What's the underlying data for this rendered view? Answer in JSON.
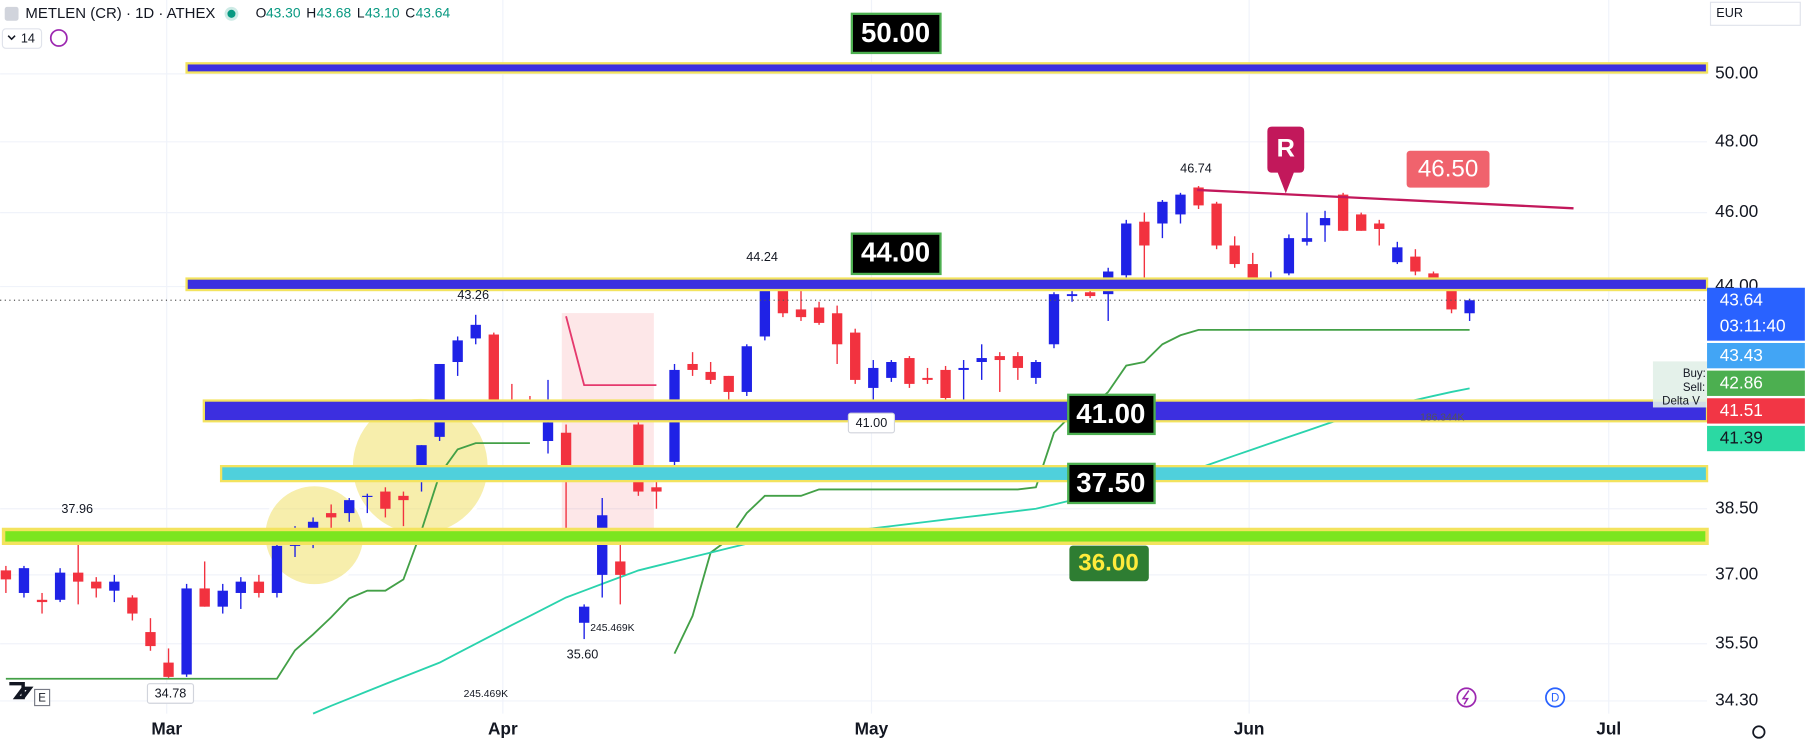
{
  "header": {
    "symbol": "METLEN (CR) · 1D · ATHEX",
    "ohlc": [
      {
        "letter": "O",
        "value": "43.30"
      },
      {
        "letter": "H",
        "value": "43.68"
      },
      {
        "letter": "L",
        "value": "43.10"
      },
      {
        "letter": "C",
        "value": "43.64"
      }
    ],
    "interval_count": "14",
    "currency": "EUR",
    "logo_badge": "E",
    "dividend_marker": "D"
  },
  "chart_data": {
    "type": "candlestick",
    "log_scale": true,
    "grid": true,
    "up_color": "#1f22e6",
    "down_color": "#f2323f",
    "x": [
      0,
      1,
      2,
      3,
      4,
      5,
      6,
      7,
      8,
      9,
      10,
      11,
      12,
      13,
      14,
      15,
      16,
      17,
      18,
      19,
      20,
      21,
      22,
      23,
      24,
      25,
      26,
      27,
      28,
      29,
      30,
      31,
      32,
      33,
      34,
      35,
      36,
      37,
      38,
      39,
      40,
      41,
      42,
      43,
      44,
      45,
      46,
      47,
      48,
      49,
      50,
      51,
      52,
      53,
      54,
      55,
      56,
      57,
      58,
      59,
      60,
      61,
      62,
      63,
      64,
      65,
      66,
      67,
      68,
      69,
      70,
      71,
      72,
      73,
      74,
      75,
      76,
      77,
      78,
      79,
      80,
      81
    ],
    "open": [
      37.1,
      36.6,
      36.45,
      36.45,
      37.05,
      36.85,
      36.65,
      36.5,
      35.75,
      35.1,
      34.85,
      36.7,
      36.3,
      36.6,
      36.85,
      36.6,
      37.65,
      37.95,
      38.4,
      38.4,
      38.8,
      38.9,
      38.8,
      39.2,
      40.2,
      42.05,
      42.65,
      42.75,
      41.0,
      40.95,
      40.1,
      40.3,
      35.95,
      37.0,
      37.3,
      40.5,
      39.0,
      39.6,
      42.0,
      41.8,
      41.7,
      41.3,
      42.7,
      44.0,
      43.4,
      43.45,
      43.3,
      42.8,
      41.4,
      41.65,
      42.15,
      41.65,
      41.85,
      41.85,
      42.05,
      42.2,
      42.2,
      41.65,
      42.5,
      43.75,
      43.85,
      43.8,
      44.3,
      45.75,
      45.7,
      45.95,
      46.7,
      46.25,
      45.1,
      44.6,
      43.95,
      44.35,
      45.2,
      45.65,
      46.5,
      45.95,
      45.7,
      44.65,
      44.8,
      44.35,
      43.95,
      43.3
    ],
    "high": [
      37.2,
      37.2,
      36.6,
      37.15,
      37.96,
      36.95,
      37.0,
      36.55,
      36.05,
      35.4,
      36.8,
      37.3,
      36.8,
      36.95,
      37.0,
      37.7,
      38.1,
      38.3,
      38.6,
      38.75,
      38.85,
      39.0,
      38.9,
      40.0,
      42.0,
      42.7,
      43.26,
      42.8,
      41.5,
      41.2,
      41.6,
      40.5,
      36.35,
      38.75,
      37.9,
      40.6,
      39.3,
      42.0,
      42.3,
      42.05,
      41.7,
      42.5,
      44.24,
      44.1,
      44.0,
      43.6,
      43.5,
      42.9,
      42.1,
      42.1,
      42.2,
      41.9,
      41.95,
      42.1,
      42.5,
      42.3,
      42.3,
      42.1,
      43.85,
      43.95,
      43.95,
      44.5,
      45.8,
      46.0,
      46.35,
      46.55,
      46.74,
      46.3,
      45.35,
      44.9,
      44.4,
      45.4,
      46.0,
      46.05,
      46.55,
      46.0,
      45.8,
      45.2,
      45.0,
      44.4,
      44.15,
      43.68
    ],
    "low": [
      36.6,
      36.5,
      36.15,
      36.4,
      36.35,
      36.5,
      36.4,
      36.0,
      35.35,
      34.78,
      34.8,
      36.3,
      36.15,
      36.25,
      36.5,
      36.5,
      37.4,
      37.6,
      37.75,
      38.2,
      38.4,
      38.3,
      38.1,
      38.9,
      40.1,
      41.7,
      42.5,
      40.6,
      40.7,
      40.7,
      39.8,
      37.9,
      35.6,
      36.5,
      36.35,
      38.8,
      38.5,
      39.5,
      41.7,
      41.5,
      41.0,
      41.2,
      42.6,
      43.2,
      43.1,
      43.0,
      42.0,
      41.5,
      41.0,
      41.55,
      41.4,
      41.5,
      40.9,
      41.1,
      41.6,
      41.3,
      41.6,
      41.5,
      42.4,
      43.6,
      43.7,
      43.1,
      44.2,
      44.0,
      45.3,
      45.7,
      46.1,
      45.0,
      44.5,
      43.9,
      43.9,
      44.3,
      45.1,
      45.2,
      45.5,
      45.5,
      45.1,
      44.6,
      44.3,
      43.9,
      43.3,
      43.1
    ],
    "close": [
      36.9,
      37.15,
      36.4,
      37.05,
      36.85,
      36.7,
      36.85,
      36.15,
      35.45,
      34.8,
      36.7,
      36.3,
      36.65,
      36.85,
      36.6,
      37.65,
      38.05,
      38.2,
      38.3,
      38.7,
      38.8,
      38.5,
      38.7,
      40.0,
      42.0,
      42.6,
      43.0,
      40.7,
      40.9,
      40.9,
      40.55,
      39.2,
      36.3,
      38.35,
      37.0,
      38.9,
      38.9,
      41.85,
      41.85,
      41.6,
      41.3,
      42.45,
      44.0,
      43.3,
      43.2,
      43.05,
      42.5,
      41.6,
      41.9,
      42.05,
      41.5,
      41.6,
      41.15,
      41.9,
      42.15,
      42.1,
      41.9,
      42.05,
      43.8,
      43.8,
      43.75,
      44.4,
      45.7,
      45.1,
      46.3,
      46.5,
      46.2,
      45.1,
      44.6,
      44.15,
      44.0,
      45.3,
      45.3,
      45.85,
      45.5,
      45.5,
      45.55,
      45.05,
      44.4,
      43.95,
      43.4,
      43.64
    ],
    "lines": [
      {
        "color": "#43a047",
        "values": [
          34.76,
          34.76,
          34.76,
          34.76,
          34.76,
          34.76,
          34.76,
          34.76,
          34.76,
          34.76,
          34.76,
          34.76,
          34.76,
          34.76,
          34.76,
          34.76,
          35.36,
          35.7,
          36.07,
          36.48,
          36.65,
          36.65,
          36.9,
          38.0,
          39.3,
          39.9,
          40.05,
          40.05,
          40.05,
          40.05,
          null,
          null,
          null,
          null,
          null,
          null,
          null,
          null,
          null,
          null,
          null,
          null,
          null,
          null,
          null,
          null,
          null,
          null,
          null,
          null,
          null,
          null,
          null,
          null,
          null,
          null,
          null,
          null,
          null,
          null,
          null,
          null,
          null,
          null,
          null,
          null,
          null,
          null,
          null,
          null,
          null,
          null,
          null,
          null,
          null,
          null,
          null,
          null,
          null,
          null,
          null,
          null
        ]
      },
      {
        "color": "#e5396d",
        "values": [
          null,
          null,
          null,
          null,
          null,
          null,
          null,
          null,
          null,
          null,
          null,
          null,
          null,
          null,
          null,
          null,
          null,
          null,
          null,
          null,
          null,
          null,
          null,
          null,
          null,
          null,
          null,
          null,
          null,
          null,
          null,
          43.22,
          41.47,
          41.47,
          41.47,
          41.47,
          41.47,
          null,
          null,
          null,
          null,
          null,
          null,
          null,
          null,
          null,
          null,
          null,
          null,
          null,
          null,
          null,
          null,
          null,
          null,
          null,
          null,
          null,
          null,
          null,
          null,
          null,
          null,
          null,
          null,
          null,
          null,
          null,
          null,
          null,
          null,
          null,
          null,
          null,
          null,
          null,
          null,
          null,
          null,
          null,
          null,
          null
        ]
      },
      {
        "color": "#43a047",
        "values": [
          null,
          null,
          null,
          null,
          null,
          null,
          null,
          null,
          null,
          null,
          null,
          null,
          null,
          null,
          null,
          null,
          null,
          null,
          null,
          null,
          null,
          null,
          null,
          null,
          null,
          null,
          null,
          null,
          null,
          null,
          null,
          null,
          null,
          null,
          null,
          null,
          null,
          35.29,
          36.1,
          37.5,
          37.8,
          38.4,
          38.8,
          38.8,
          38.8,
          38.95,
          38.95,
          38.95,
          38.95,
          38.95,
          38.95,
          38.95,
          38.95,
          38.95,
          38.95,
          38.95,
          38.95,
          39.0,
          40.3,
          40.75,
          40.9,
          41.3,
          41.96,
          42.05,
          42.5,
          42.73,
          42.87,
          42.87,
          42.87,
          42.87,
          42.87,
          42.87,
          42.87,
          42.87,
          42.87,
          42.87,
          42.87,
          42.87,
          42.87,
          42.87,
          42.87,
          42.87
        ]
      },
      {
        "color": "#2ad3ad",
        "values": [
          null,
          null,
          null,
          null,
          null,
          null,
          null,
          null,
          null,
          null,
          null,
          null,
          null,
          null,
          null,
          null,
          null,
          34.04,
          34.2,
          34.35,
          34.5,
          34.65,
          34.8,
          34.95,
          35.1,
          35.3,
          35.5,
          35.7,
          35.9,
          36.1,
          36.3,
          36.5,
          36.65,
          36.8,
          36.95,
          37.1,
          37.2,
          37.3,
          37.4,
          37.5,
          37.6,
          37.7,
          37.75,
          37.8,
          37.85,
          37.9,
          37.95,
          38.0,
          38.05,
          38.1,
          38.15,
          38.2,
          38.25,
          38.3,
          38.35,
          38.4,
          38.45,
          38.5,
          38.6,
          38.7,
          38.8,
          38.9,
          39.0,
          39.1,
          39.2,
          39.3,
          39.45,
          39.6,
          39.75,
          39.9,
          40.05,
          40.2,
          40.35,
          40.5,
          40.65,
          40.8,
          40.9,
          41.0,
          41.1,
          41.2,
          41.3,
          41.39
        ]
      }
    ],
    "xlim": [
      -0.32,
      94.14
    ],
    "xticks": [
      {
        "value": 8.9,
        "label": "Mar"
      },
      {
        "value": 27.5,
        "label": "Apr"
      },
      {
        "value": 47.9,
        "label": "May"
      },
      {
        "value": 68.8,
        "label": "Jun"
      },
      {
        "value": 88.7,
        "label": "Jul"
      }
    ],
    "ylim": [
      34.04,
      52.27
    ],
    "yticks": [
      {
        "value": 34.3,
        "label": "34.30"
      },
      {
        "value": 35.5,
        "label": "35.50"
      },
      {
        "value": 37,
        "label": "37.00"
      },
      {
        "value": 38.5,
        "label": "38.50"
      },
      {
        "value": 44,
        "label": "44.00"
      },
      {
        "value": 46,
        "label": "46.00"
      },
      {
        "value": 48,
        "label": "48.00"
      },
      {
        "value": 50,
        "label": "50.00"
      }
    ],
    "axis_badges": [
      {
        "text": "43.64",
        "subtext": "03:11:40",
        "color": "#2962ff",
        "text_color": "#ffffff"
      },
      {
        "text": "43.43",
        "color": "#42a5f5",
        "text_color": "#ffffff"
      },
      {
        "text": "42.86",
        "color": "#4caf50",
        "text_color": "#ffffff"
      },
      {
        "text": "41.51",
        "color": "#f23645",
        "text_color": "#ffffff"
      },
      {
        "text": "41.39",
        "color": "#2bd9a3",
        "text_color": "#131722"
      }
    ],
    "annotations": {
      "levels": [
        "50.00",
        "44.00",
        "41.00",
        "37.50",
        "36.00",
        "46.50"
      ],
      "marker": "R",
      "point_labels": [
        "37.96",
        "34.78",
        "43.26",
        "44.24",
        "41.00",
        "35.60",
        "46.74"
      ],
      "volume_labels": [
        "245.469K",
        "245.469K",
        "186.344K"
      ],
      "order_flow": [
        "Buy:",
        "Sell:",
        "Delta V"
      ]
    }
  }
}
